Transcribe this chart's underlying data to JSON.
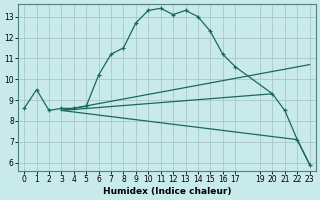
{
  "xlabel": "Humidex (Indice chaleur)",
  "bg_color": "#c8eaea",
  "grid_color": "#a8c8c8",
  "line_color": "#1a6860",
  "xlim": [
    -0.5,
    23.5
  ],
  "ylim": [
    5.6,
    13.6
  ],
  "xticks": [
    0,
    1,
    2,
    3,
    4,
    5,
    6,
    7,
    8,
    9,
    10,
    11,
    12,
    13,
    14,
    15,
    16,
    17,
    19,
    20,
    21,
    22,
    23
  ],
  "yticks": [
    6,
    7,
    8,
    9,
    10,
    11,
    12,
    13
  ],
  "lines": [
    {
      "x": [
        0,
        1,
        2,
        3,
        4,
        5,
        6,
        7,
        8,
        9,
        10,
        11,
        12,
        13,
        14,
        15,
        16,
        17,
        20,
        21,
        22,
        23
      ],
      "y": [
        8.6,
        9.5,
        8.5,
        8.6,
        8.6,
        8.7,
        10.2,
        11.2,
        11.5,
        12.7,
        13.3,
        13.4,
        13.1,
        13.3,
        13.0,
        12.3,
        11.2,
        10.6,
        9.3,
        8.5,
        7.1,
        5.9
      ],
      "marker": true
    },
    {
      "x": [
        3,
        23
      ],
      "y": [
        8.5,
        10.7
      ],
      "marker": false
    },
    {
      "x": [
        3,
        20
      ],
      "y": [
        8.5,
        9.3
      ],
      "marker": false
    },
    {
      "x": [
        3,
        22,
        23
      ],
      "y": [
        8.5,
        7.1,
        5.9
      ],
      "marker": false
    }
  ]
}
